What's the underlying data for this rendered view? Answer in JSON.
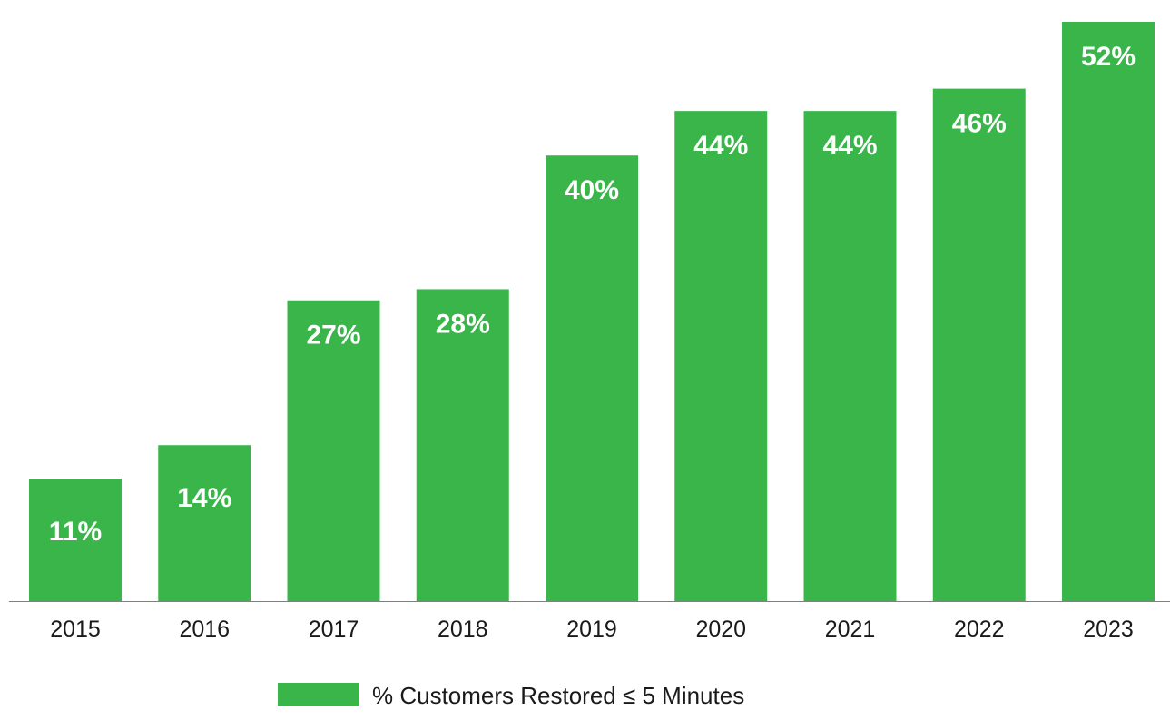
{
  "chart_data": {
    "type": "bar",
    "categories": [
      "2015",
      "2016",
      "2017",
      "2018",
      "2019",
      "2020",
      "2021",
      "2022",
      "2023"
    ],
    "series": [
      {
        "name": "% Customers Restored ≤ 5 Minutes",
        "values": [
          11,
          14,
          27,
          28,
          40,
          44,
          44,
          46,
          52
        ],
        "labels": [
          "11%",
          "14%",
          "27%",
          "28%",
          "40%",
          "44%",
          "44%",
          "46%",
          "52%"
        ],
        "color": "#39b54a"
      }
    ],
    "title": "",
    "xlabel": "",
    "ylabel": "",
    "ylim": [
      0,
      52
    ],
    "grid": false,
    "legend_position": "bottom"
  },
  "colors": {
    "bar": "#39b54a",
    "axis": "#808080",
    "bar_label": "#ffffff",
    "tick_label": "#1a1a1a"
  }
}
